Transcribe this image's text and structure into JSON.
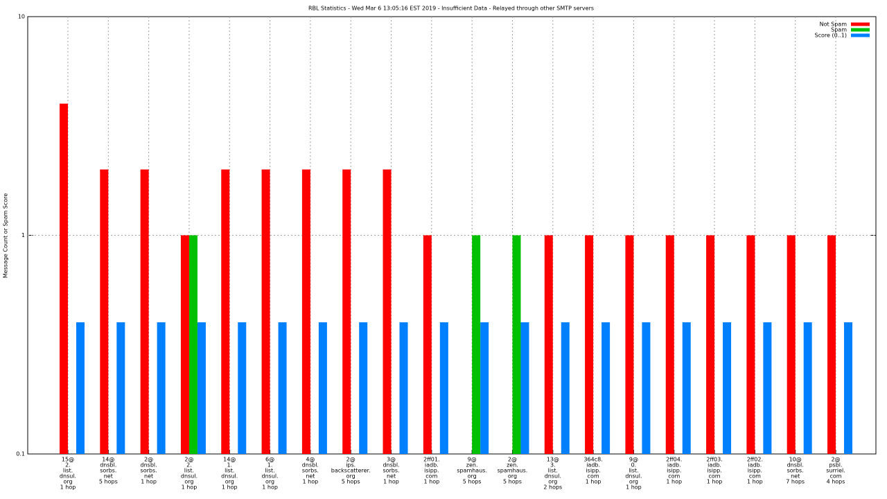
{
  "chart_data": {
    "type": "bar",
    "title": "RBL Statistics - Wed Mar  6 13:05:16 EST 2019 - Insufficient Data - Relayed through other SMTP servers",
    "y_label": "Message Count or Spam Score",
    "categories": [
      [
        "15@",
        "2.",
        "list.",
        "dnsul.",
        "org",
        "1 hop"
      ],
      [
        "14@",
        "dnsbl.",
        "sorbs.",
        "net",
        "5 hops"
      ],
      [
        "2@",
        "dnsbl.",
        "sorbs.",
        "net",
        "1 hop"
      ],
      [
        "2@",
        "2.",
        "list.",
        "dnsul.",
        "org",
        "1 hop"
      ],
      [
        "14@",
        "1.",
        "list.",
        "dnsul.",
        "org",
        "1 hop"
      ],
      [
        "6@",
        "1.",
        "list.",
        "dnsul.",
        "org",
        "1 hop"
      ],
      [
        "4@",
        "dnsbl.",
        "sorbs.",
        "net",
        "1 hop"
      ],
      [
        "2@",
        "ips.",
        "backscatterer.",
        "org",
        "5 hops"
      ],
      [
        "3@",
        "dnsbl.",
        "sorbs.",
        "net",
        "1 hop"
      ],
      [
        "2ff01.",
        "iadb.",
        "isipp.",
        "com",
        "1 hop"
      ],
      [
        "9@",
        "zen.",
        "spamhaus.",
        "org",
        "5 hops"
      ],
      [
        "2@",
        "zen.",
        "spamhaus.",
        "org",
        "5 hops"
      ],
      [
        "13@",
        "3.",
        "list.",
        "dnsul.",
        "org",
        "2 hops"
      ],
      [
        "364c8.",
        "iadb.",
        "isipp.",
        "com",
        "1 hop"
      ],
      [
        "9@",
        "0.",
        "list.",
        "dnsul.",
        "org",
        "1 hop"
      ],
      [
        "2ff04.",
        "iadb.",
        "isipp.",
        "com",
        "1 hop"
      ],
      [
        "2ff03.",
        "iadb.",
        "isipp.",
        "com",
        "1 hop"
      ],
      [
        "2ff02.",
        "iadb.",
        "isipp.",
        "com",
        "1 hop"
      ],
      [
        "10@",
        "dnsbl.",
        "sorbs.",
        "net",
        "7 hops"
      ],
      [
        "2@",
        "psbl.",
        "surriel.",
        "com",
        "4 hops"
      ]
    ],
    "series": [
      {
        "name": "Not Spam",
        "color": "#ff0000",
        "values": [
          4,
          2,
          2,
          1,
          2,
          2,
          2,
          2,
          2,
          1,
          null,
          null,
          1,
          1,
          1,
          1,
          1,
          1,
          1,
          1
        ]
      },
      {
        "name": "Spam",
        "color": "#00c000",
        "values": [
          null,
          null,
          null,
          1,
          null,
          null,
          null,
          null,
          null,
          null,
          1,
          1,
          null,
          null,
          null,
          null,
          null,
          null,
          null,
          null
        ]
      },
      {
        "name": "Score (0..1)",
        "color": "#0080ff",
        "values": [
          0.4,
          0.4,
          0.4,
          0.4,
          0.4,
          0.4,
          0.4,
          0.4,
          0.4,
          0.4,
          0.4,
          0.4,
          0.4,
          0.4,
          0.4,
          0.4,
          0.4,
          0.4,
          0.4,
          0.4
        ]
      }
    ],
    "ylim": [
      0.1,
      10
    ],
    "yticks": [
      0.1,
      1,
      10
    ],
    "log_y": true,
    "grid": true,
    "legend": "top-right"
  }
}
